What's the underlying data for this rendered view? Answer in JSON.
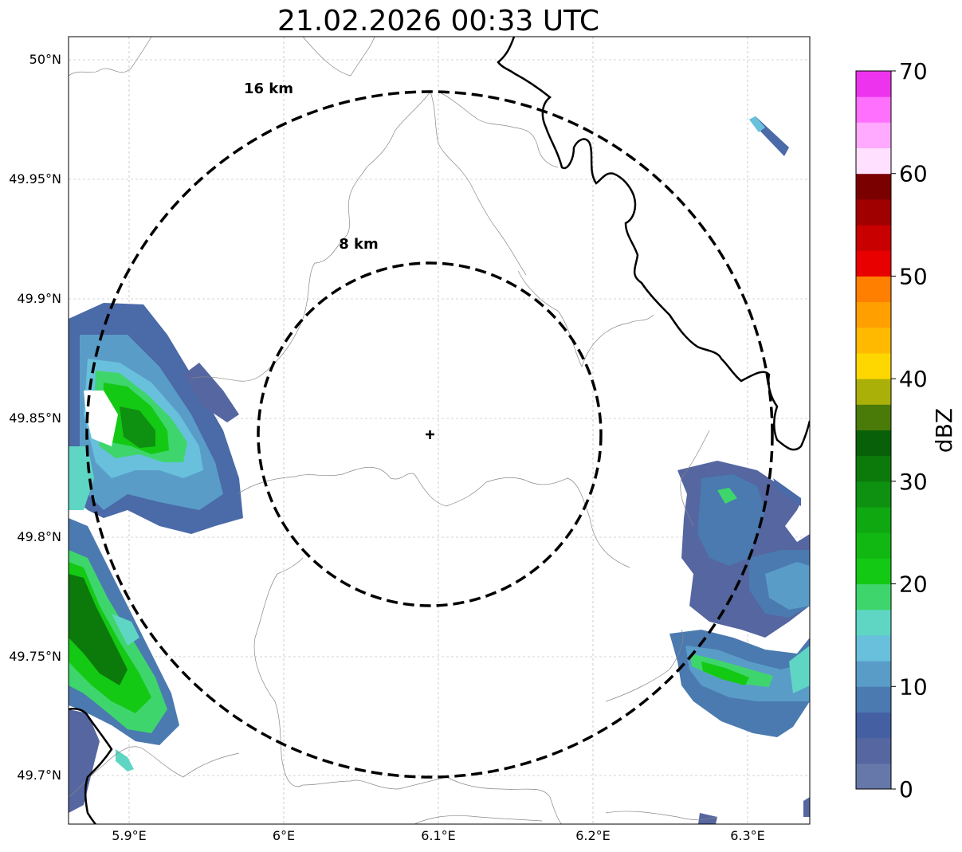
{
  "title": "21.02.2026 00:33 UTC",
  "map": {
    "x_ticks": [
      "5.9°E",
      "6°E",
      "6.1°E",
      "6.2°E",
      "6.3°E"
    ],
    "y_ticks": [
      "50°N",
      "49.95°N",
      "49.9°N",
      "49.85°N",
      "49.8°N",
      "49.75°N",
      "49.7°N"
    ],
    "grid": true,
    "range_rings": [
      {
        "label": "8 km",
        "radius_km": 8
      },
      {
        "label": "16 km",
        "radius_km": 16
      }
    ],
    "center_marker": "radar-site-cross",
    "center": {
      "lon": 6.095,
      "lat": 49.843
    }
  },
  "colorbar": {
    "label": "dBZ",
    "ticks": [
      "0",
      "10",
      "20",
      "30",
      "40",
      "50",
      "60",
      "70"
    ],
    "min": 0,
    "max": 70,
    "step": 2.5,
    "colors": [
      "#6677aa",
      "#5566a0",
      "#4460a3",
      "#4a7ab0",
      "#5a9cc8",
      "#68c0dc",
      "#5fd6c4",
      "#3ed66c",
      "#14c914",
      "#12b812",
      "#10a810",
      "#0e9010",
      "#0b7a0b",
      "#086108",
      "#4a7a08",
      "#aab008",
      "#ffd700",
      "#ffba00",
      "#ffa000",
      "#ff8000",
      "#e80000",
      "#c80000",
      "#a00000",
      "#7a0000",
      "#ffe0ff",
      "#ffaaff",
      "#ff70ff",
      "#ee33ee"
    ]
  },
  "chart_data": {
    "type": "heatmap",
    "title": "21.02.2026 00:33 UTC",
    "x_range_lon": [
      5.86,
      6.34
    ],
    "y_range_lat": [
      49.68,
      50.01
    ],
    "value_unit": "dBZ",
    "value_range": [
      0,
      70
    ],
    "echo_regions": [
      {
        "lon": [
          5.86,
          5.92
        ],
        "lat": [
          49.79,
          49.88
        ],
        "dbz": [
          5,
          25
        ]
      },
      {
        "lon": [
          5.92,
          5.97
        ],
        "lat": [
          49.8,
          49.87
        ],
        "dbz": [
          3,
          15
        ]
      },
      {
        "lon": [
          5.86,
          5.92
        ],
        "lat": [
          49.72,
          49.8
        ],
        "dbz": [
          5,
          30
        ]
      },
      {
        "lon": [
          5.86,
          5.88
        ],
        "lat": [
          49.68,
          49.72
        ],
        "dbz": [
          3,
          10
        ]
      },
      {
        "lon": [
          6.26,
          6.34
        ],
        "lat": [
          49.77,
          49.83
        ],
        "dbz": [
          3,
          15
        ]
      },
      {
        "lon": [
          6.25,
          6.34
        ],
        "lat": [
          49.72,
          49.76
        ],
        "dbz": [
          5,
          20
        ]
      },
      {
        "lon": [
          6.3,
          6.32
        ],
        "lat": [
          49.96,
          49.98
        ],
        "dbz": [
          5,
          12
        ]
      }
    ]
  }
}
